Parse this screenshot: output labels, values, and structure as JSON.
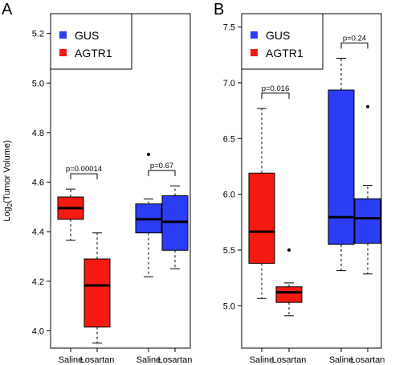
{
  "colors": {
    "GUS": "#2b3df5",
    "AGTR1": "#f41a12"
  },
  "y_axis_label": {
    "main": "Log",
    "sub": "2",
    "rest": "(Tumor Volume)"
  },
  "chart_data": [
    {
      "panel": "A",
      "type": "box",
      "ylim": [
        3.93,
        5.28
      ],
      "yticks": [
        "4.0",
        "4.2",
        "4.4",
        "4.6",
        "4.8",
        "5.0",
        "5.2"
      ],
      "categories": [
        "Saline",
        "Losartan",
        "Saline",
        "Losartan"
      ],
      "legend": [
        {
          "label": "GUS",
          "color": "#2b3df5"
        },
        {
          "label": "AGTR1",
          "color": "#f41a12"
        }
      ],
      "boxes": [
        {
          "group": "AGTR1",
          "category": "Saline",
          "whisker_low": 4.365,
          "q1": 4.45,
          "median": 4.495,
          "q3": 4.54,
          "whisker_high": 4.572,
          "outliers": []
        },
        {
          "group": "AGTR1",
          "category": "Losartan",
          "whisker_low": 3.95,
          "q1": 4.015,
          "median": 4.183,
          "q3": 4.29,
          "whisker_high": 4.395,
          "outliers": []
        },
        {
          "group": "GUS",
          "category": "Saline",
          "whisker_low": 4.218,
          "q1": 4.395,
          "median": 4.45,
          "q3": 4.512,
          "whisker_high": 4.532,
          "outliers": [
            4.712
          ]
        },
        {
          "group": "GUS",
          "category": "Losartan",
          "whisker_low": 4.25,
          "q1": 4.325,
          "median": 4.44,
          "q3": 4.545,
          "whisker_high": 4.585,
          "outliers": []
        }
      ],
      "annotations": [
        {
          "text": "p=0.00014",
          "between": [
            0,
            1
          ]
        },
        {
          "text": "p=0.67",
          "between": [
            2,
            3
          ]
        }
      ]
    },
    {
      "panel": "B",
      "type": "box",
      "ylim": [
        4.62,
        7.62
      ],
      "yticks": [
        "5.0",
        "5.5",
        "6.0",
        "6.5",
        "7.0",
        "7.5"
      ],
      "categories": [
        "Saline",
        "Losartan",
        "Saline",
        "Losartan"
      ],
      "legend": [
        {
          "label": "GUS",
          "color": "#2b3df5"
        },
        {
          "label": "AGTR1",
          "color": "#f41a12"
        }
      ],
      "boxes": [
        {
          "group": "AGTR1",
          "category": "Saline",
          "whisker_low": 5.065,
          "q1": 5.38,
          "median": 5.665,
          "q3": 6.19,
          "whisker_high": 6.77,
          "outliers": []
        },
        {
          "group": "AGTR1",
          "category": "Losartan",
          "whisker_low": 4.91,
          "q1": 5.03,
          "median": 5.12,
          "q3": 5.17,
          "whisker_high": 5.205,
          "outliers": [
            5.5
          ]
        },
        {
          "group": "GUS",
          "category": "Saline",
          "whisker_low": 5.315,
          "q1": 5.55,
          "median": 5.795,
          "q3": 6.935,
          "whisker_high": 7.22,
          "outliers": []
        },
        {
          "group": "GUS",
          "category": "Losartan",
          "whisker_low": 5.285,
          "q1": 5.56,
          "median": 5.785,
          "q3": 5.96,
          "whisker_high": 6.08,
          "outliers": [
            6.785
          ]
        }
      ],
      "annotations": [
        {
          "text": "p=0.016",
          "between": [
            0,
            1
          ]
        },
        {
          "text": "p=0.24",
          "between": [
            2,
            3
          ]
        }
      ]
    }
  ]
}
